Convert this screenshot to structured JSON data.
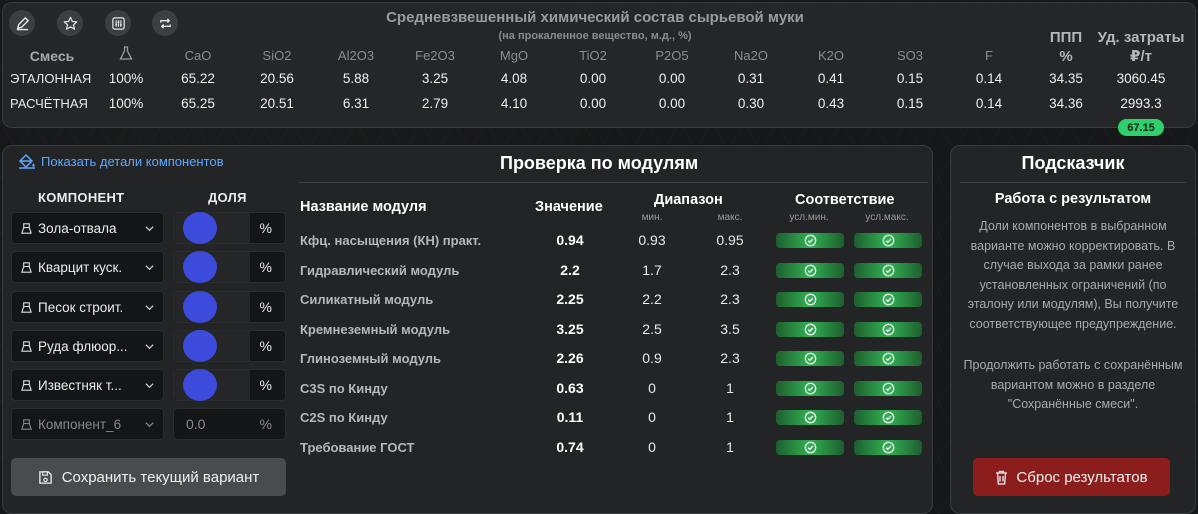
{
  "header": {
    "title": "Средневзвешенный химический состав сырьевой муки",
    "subtitle": "(на прокаленное вещество, м.д., %)"
  },
  "toolbar": {
    "icons": [
      "edit-icon",
      "star-icon",
      "sliders-icon",
      "repeat-icon"
    ]
  },
  "composition": {
    "mix_header": "Смесь",
    "columns": [
      "CaO",
      "SiO2",
      "Al2O3",
      "Fe2O3",
      "MgO",
      "TiO2",
      "P2O5",
      "Na2O",
      "K2O",
      "SO3",
      "F"
    ],
    "ppp_header_line1": "ППП",
    "ppp_header_line2": "%",
    "cost_header_line1": "Уд. затраты",
    "cost_header_line2": "₽/т",
    "rows": [
      {
        "label": "ЭТАЛОННАЯ",
        "share": "100%",
        "values": [
          "65.22",
          "20.56",
          "5.88",
          "3.25",
          "4.08",
          "0.00",
          "0.00",
          "0.31",
          "0.41",
          "0.15",
          "0.14"
        ],
        "ppp": "34.35",
        "cost": "3060.45"
      },
      {
        "label": "РАСЧЁТНАЯ",
        "share": "100%",
        "values": [
          "65.25",
          "20.51",
          "6.31",
          "2.79",
          "4.10",
          "0.00",
          "0.00",
          "0.30",
          "0.43",
          "0.15",
          "0.14"
        ],
        "ppp": "34.36",
        "cost": "2993.3"
      }
    ],
    "cost_diff_badge": "67.15"
  },
  "components": {
    "show_details_link": "Показать детали компонентов",
    "header_component": "КОМПОНЕНТ",
    "header_share": "ДОЛЯ",
    "percent_sign": "%",
    "items": [
      {
        "name": "Зола-отвала"
      },
      {
        "name": "Кварцит куск."
      },
      {
        "name": "Песок строит."
      },
      {
        "name": "Руда флюор..."
      },
      {
        "name": "Известняк т..."
      },
      {
        "name": "Компонент_6",
        "value": "0.0"
      }
    ],
    "save_button": "Сохранить текущий вариант"
  },
  "modules": {
    "title": "Проверка по модулям",
    "col_name": "Название модуля",
    "col_value": "Значение",
    "col_range": "Диапазон",
    "col_range_min": "мин.",
    "col_range_max": "макс.",
    "col_match": "Соответствие",
    "col_match_min": "усл.мин.",
    "col_match_max": "усл.макс.",
    "rows": [
      {
        "name": "Кфц. насыщения (КН) практ.",
        "value": "0.94",
        "min": "0.93",
        "max": "0.95"
      },
      {
        "name": "Гидравлический модуль",
        "value": "2.2",
        "min": "1.7",
        "max": "2.3"
      },
      {
        "name": "Силикатный модуль",
        "value": "2.25",
        "min": "2.2",
        "max": "2.3"
      },
      {
        "name": "Кремнеземный модуль",
        "value": "3.25",
        "min": "2.5",
        "max": "3.5"
      },
      {
        "name": "Глиноземный модуль",
        "value": "2.26",
        "min": "0.9",
        "max": "2.3"
      },
      {
        "name": "C3S по Кинду",
        "value": "0.63",
        "min": "0",
        "max": "1"
      },
      {
        "name": "C2S по Кинду",
        "value": "0.11",
        "min": "0",
        "max": "1"
      },
      {
        "name": "Требование ГОСТ",
        "value": "0.74",
        "min": "0",
        "max": "1"
      }
    ]
  },
  "hints": {
    "title": "Подсказчик",
    "subtitle": "Работа с результатом",
    "paragraph1": "Доли компонентов в выбранном варианте можно корректировать. В случае выхода за рамки ранее установленных ограничений (по эталону или модулям), Вы получите соответствующее предупреждение.",
    "paragraph2": "Продолжить работать с сохранённым вариантом можно в разделе \"Сохранённые смеси\".",
    "reset_button": "Сброс результатов"
  },
  "colors": {
    "accent_blue": "#3c4bdb",
    "link_blue": "#5fa8ff",
    "ok_green": "#31b253",
    "badge_green": "#2fcf6b",
    "danger_red": "#8c1d1d"
  }
}
